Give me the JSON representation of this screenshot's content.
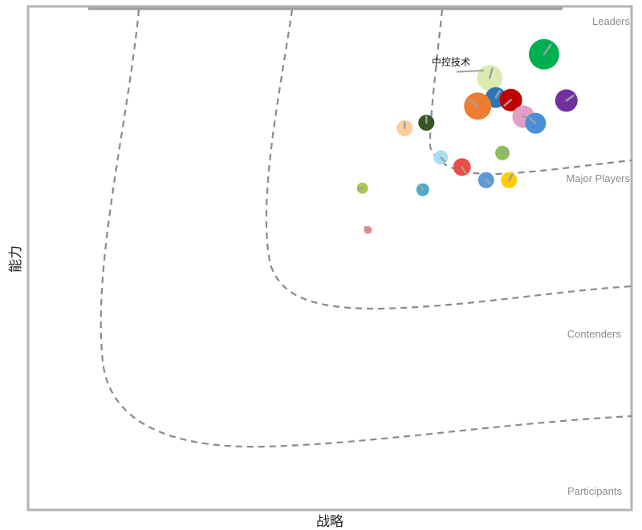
{
  "chart_data": {
    "type": "scatter",
    "title": "",
    "xlabel": "战略",
    "ylabel": "能力",
    "xlim": [
      0,
      100
    ],
    "ylim": [
      0,
      100
    ],
    "grid": false,
    "categories": [
      "Leaders",
      "Major Players",
      "Contenders",
      "Participants"
    ],
    "annotations": [
      {
        "text": "中控技术",
        "x": 71,
        "y": 87
      }
    ],
    "points": [
      {
        "x": 85.5,
        "y": 90.5,
        "size": 19,
        "color": "#00b050",
        "tail": 55
      },
      {
        "x": 76.5,
        "y": 85.8,
        "size": 16,
        "color": "#dcebb0",
        "tail": 75
      },
      {
        "x": 77.5,
        "y": 81.9,
        "size": 13,
        "color": "#2e75b6",
        "tail": 60
      },
      {
        "x": 80.0,
        "y": 81.4,
        "size": 14,
        "color": "#c00000",
        "tail": 220
      },
      {
        "x": 89.2,
        "y": 81.3,
        "size": 14,
        "color": "#7030a0",
        "tail": 35
      },
      {
        "x": 74.5,
        "y": 80.2,
        "size": 17,
        "color": "#ed7d31",
        "tail": 145
      },
      {
        "x": 82.1,
        "y": 78.1,
        "size": 14,
        "color": "#e29ec7",
        "tail": 350
      },
      {
        "x": 84.1,
        "y": 76.8,
        "size": 13,
        "color": "#4a90d9",
        "tail": 140
      },
      {
        "x": 66.0,
        "y": 76.9,
        "size": 10,
        "color": "#375623",
        "tail": 90
      },
      {
        "x": 62.4,
        "y": 75.8,
        "size": 10,
        "color": "#ffcc99",
        "tail": 90
      },
      {
        "x": 78.6,
        "y": 70.9,
        "size": 9,
        "color": "#8dbf5a",
        "tail": 15
      },
      {
        "x": 68.4,
        "y": 70.0,
        "size": 9,
        "color": "#a9dff2",
        "tail": 315
      },
      {
        "x": 71.9,
        "y": 68.1,
        "size": 11,
        "color": "#ea4c46",
        "tail": 300
      },
      {
        "x": 75.9,
        "y": 65.5,
        "size": 10,
        "color": "#5b9bd5",
        "tail": 320
      },
      {
        "x": 79.7,
        "y": 65.5,
        "size": 10,
        "color": "#ffcc00",
        "tail": 60
      },
      {
        "x": 55.4,
        "y": 63.9,
        "size": 7,
        "color": "#a8c94a",
        "tail": 195
      },
      {
        "x": 65.4,
        "y": 63.6,
        "size": 8,
        "color": "#4bacc6",
        "tail": 120
      },
      {
        "x": 56.3,
        "y": 55.6,
        "size": 5,
        "color": "#e88a84",
        "tail": 135
      }
    ]
  }
}
